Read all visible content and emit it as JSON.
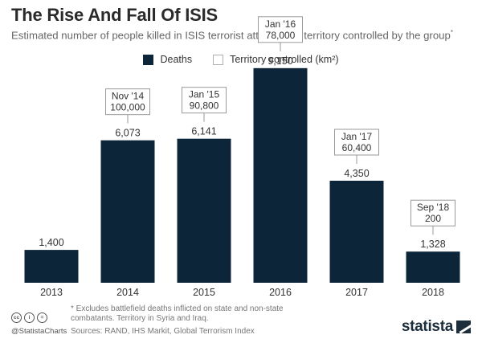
{
  "header": {
    "title": "The Rise And Fall Of ISIS",
    "subtitle": "Estimated number of people killed in ISIS terrorist attacks and territory controlled by the group",
    "subtitle_mark": "*"
  },
  "legend": {
    "deaths_label": "Deaths",
    "territory_label": "Territory controlled (km²)"
  },
  "colors": {
    "bar": "#0c2538",
    "text": "#333333",
    "box_border": "#999999"
  },
  "chart_data": {
    "type": "bar",
    "categories": [
      "2013",
      "2014",
      "2015",
      "2016",
      "2017",
      "2018"
    ],
    "series": [
      {
        "name": "Deaths",
        "values": [
          1400,
          6073,
          6141,
          9150,
          4350,
          1328
        ]
      }
    ],
    "value_labels": [
      "1,400",
      "6,073",
      "6,141",
      "9,150",
      "4,350",
      "1,328"
    ],
    "annotations": [
      null,
      {
        "date": "Nov '14",
        "value": "100,000"
      },
      {
        "date": "Jan '15",
        "value": "90,800"
      },
      {
        "date": "Jan '16",
        "value": "78,000"
      },
      {
        "date": "Jan '17",
        "value": "60,400"
      },
      {
        "date": "Sep '18",
        "value": "200"
      }
    ],
    "ylim": [
      0,
      10000
    ],
    "grid": false,
    "legend_position": "top-center"
  },
  "footer": {
    "footnote": "* Excludes battlefield deaths inflicted on state and non-state combatants. Territory in Syria and Iraq.",
    "sources": "Sources: RAND, IHS Markit, Global Terrorism Index",
    "handle": "@StatistaCharts",
    "brand": "statista",
    "cc_icons": [
      "cc",
      "by",
      "nd"
    ]
  }
}
